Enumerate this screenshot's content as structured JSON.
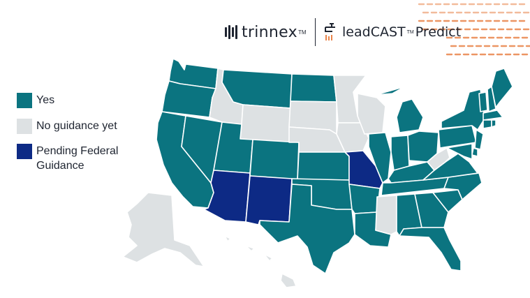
{
  "logos": {
    "trinnex": "trinnex",
    "trinnex_tm": "TM",
    "leadcast": "leadCAST",
    "leadcast_tm": "TM",
    "predict": "Predict"
  },
  "legend": [
    {
      "label": "Yes",
      "color": "#0b7480"
    },
    {
      "label": "No guidance yet",
      "color": "#dde1e3"
    },
    {
      "label": "Pending Federal Guidance",
      "color": "#0d2a85"
    }
  ],
  "colors": {
    "yes": "#0b7480",
    "none": "#dde1e3",
    "pending": "#0d2a85",
    "accent": "#e9844a",
    "text": "#1e2430"
  },
  "map": {
    "states_yes": [
      "WA",
      "OR",
      "CA",
      "NV",
      "UT",
      "CO",
      "MT",
      "ND",
      "KS",
      "OK",
      "TX",
      "AR",
      "LA",
      "AL",
      "GA",
      "FL",
      "SC",
      "NC",
      "TN",
      "KY",
      "VA",
      "IN",
      "OH",
      "MI",
      "IL",
      "PA",
      "NY",
      "VT",
      "NH",
      "ME",
      "MA",
      "CT",
      "RI",
      "NJ",
      "DE",
      "MD"
    ],
    "states_none": [
      "ID",
      "WY",
      "SD",
      "NE",
      "MN",
      "IA",
      "WI",
      "MS",
      "WV",
      "AK",
      "HI"
    ],
    "states_pending": [
      "AZ",
      "NM",
      "MO"
    ]
  }
}
